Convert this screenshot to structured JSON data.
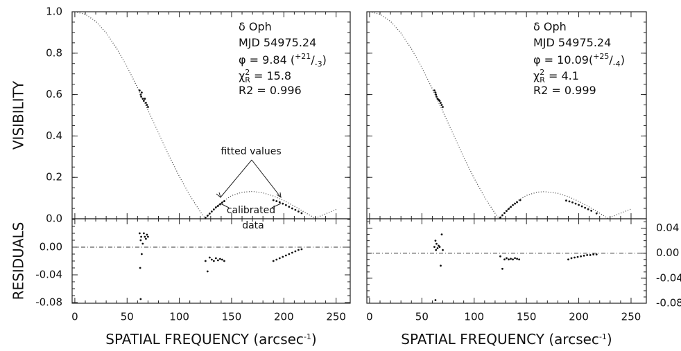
{
  "chart_data": [
    {
      "type": "line",
      "ylabel": "VISIBILITY",
      "xlim": [
        -2.6,
        263.5
      ],
      "ylim": [
        0,
        1
      ],
      "xticks": [
        0,
        50,
        100,
        150,
        200,
        250
      ],
      "yticks": [
        {
          "value": 0,
          "label": "0.0"
        },
        0.2,
        0.4,
        0.6,
        0.8,
        {
          "value": 1,
          "label": "1.0"
        }
      ],
      "ytick_side": "left",
      "xtick_labels": false,
      "annotations": {
        "star": "δ Oph",
        "mjd": "MJD 54975.24",
        "phi": {
          "text": "φ = 9.84 (",
          "sup": "+21",
          "sep": "/",
          "sub": "-3",
          "close": ")"
        },
        "chi": {
          "symbol": "χ",
          "sup": "2",
          "sub": "R",
          "text": " = 15.8"
        },
        "r2": "R2 = 0.996"
      },
      "callouts": [
        "fitted values",
        "calibrated",
        "data"
      ],
      "series": [
        {
          "style": "dotted",
          "color": "#444",
          "x": [
            0,
            10,
            20,
            30,
            40,
            50,
            60,
            70,
            80,
            90,
            100,
            110,
            120,
            125,
            130,
            140,
            150,
            160,
            170,
            180,
            190,
            200,
            210,
            220,
            230,
            240,
            250
          ],
          "values": [
            1,
            0.988,
            0.954,
            0.898,
            0.823,
            0.734,
            0.633,
            0.524,
            0.415,
            0.306,
            0.205,
            0.113,
            0.034,
            0,
            0.03,
            0.078,
            0.112,
            0.128,
            0.132,
            0.125,
            0.11,
            0.088,
            0.061,
            0.031,
            0.002,
            0.024,
            0.045
          ]
        },
        {
          "style": "points",
          "color": "#111",
          "x": [
            62,
            63,
            63.5,
            64,
            65,
            66,
            67,
            68,
            69,
            70,
            125,
            127,
            129,
            131,
            133,
            135,
            137,
            139,
            141,
            143,
            190,
            193,
            196,
            199,
            202,
            205,
            208,
            211,
            214,
            217
          ],
          "values": [
            0.62,
            0.6,
            0.59,
            0.61,
            0.58,
            0.57,
            0.58,
            0.56,
            0.55,
            0.54,
            0.005,
            0.015,
            0.025,
            0.035,
            0.045,
            0.055,
            0.062,
            0.07,
            0.078,
            0.085,
            0.09,
            0.085,
            0.08,
            0.073,
            0.066,
            0.058,
            0.05,
            0.043,
            0.035,
            0.027
          ]
        }
      ]
    },
    {
      "type": "line",
      "ylabel": "RESIDUALS",
      "xlim": [
        -2.6,
        263.5
      ],
      "ylim": [
        -0.081,
        0.041
      ],
      "xticks": [
        0,
        50,
        100,
        150,
        200,
        250
      ],
      "yticks": [
        {
          "value": 0,
          "label": "0.00"
        },
        {
          "value": -0.04,
          "label": "-0.04"
        },
        {
          "value": -0.08,
          "label": "-0.08"
        }
      ],
      "ytick_side": "left",
      "xtick_labels": true,
      "reference_line": 0,
      "xlabel": {
        "text": "SPATIAL FREQUENCY (arcsec",
        "sup": "-1",
        "close": ")"
      },
      "series": [
        {
          "style": "points",
          "color": "#111",
          "x": [
            62,
            63,
            63.5,
            64,
            65,
            66,
            67,
            68,
            69,
            70,
            62.5,
            63,
            125,
            127,
            129,
            131,
            133,
            135,
            137,
            139,
            141,
            143,
            190,
            193,
            196,
            199,
            202,
            205,
            208,
            211,
            214,
            217
          ],
          "values": [
            0.02,
            0.01,
            0.015,
            -0.01,
            0.005,
            0.02,
            0.015,
            0.012,
            0.018,
            0.015,
            -0.03,
            -0.075,
            -0.02,
            -0.035,
            -0.015,
            -0.018,
            -0.02,
            -0.016,
            -0.019,
            -0.017,
            -0.018,
            -0.02,
            -0.02,
            -0.018,
            -0.016,
            -0.014,
            -0.012,
            -0.01,
            -0.008,
            -0.006,
            -0.004,
            -0.003
          ]
        }
      ]
    },
    {
      "type": "line",
      "xlim": [
        -2.6,
        264.6
      ],
      "ylim": [
        0,
        1
      ],
      "xticks": [
        0,
        50,
        100,
        150,
        200,
        250
      ],
      "yticks": [
        0,
        0.2,
        0.4,
        0.6,
        0.8,
        1
      ],
      "ytick_side": "none",
      "xtick_labels": false,
      "annotations": {
        "star": "δ Oph",
        "mjd": "MJD 54975.24",
        "phi": {
          "text": "φ = 10.09(",
          "sup": "+25",
          "sep": "/",
          "sub": "-4",
          "close": ")"
        },
        "chi": {
          "symbol": "χ",
          "sup": "2",
          "sub": "R",
          "text": " = 4.1"
        },
        "r2": "R2 = 0.999"
      },
      "series": [
        {
          "style": "dotted",
          "color": "#444",
          "x": [
            0,
            10,
            20,
            30,
            40,
            50,
            60,
            70,
            80,
            90,
            100,
            110,
            120,
            124,
            130,
            140,
            150,
            160,
            167,
            180,
            190,
            200,
            210,
            220,
            228,
            240,
            250
          ],
          "values": [
            1,
            0.988,
            0.954,
            0.897,
            0.821,
            0.731,
            0.628,
            0.519,
            0.408,
            0.298,
            0.196,
            0.104,
            0.026,
            0,
            0.036,
            0.082,
            0.113,
            0.128,
            0.131,
            0.123,
            0.107,
            0.084,
            0.057,
            0.027,
            0.002,
            0.027,
            0.047
          ]
        },
        {
          "style": "points",
          "color": "#111",
          "x": [
            62,
            63,
            63.5,
            64,
            65,
            66,
            67,
            68,
            69,
            70,
            125,
            127,
            129,
            131,
            133,
            135,
            137,
            139,
            141,
            144,
            188,
            191,
            194,
            197,
            200,
            203,
            206,
            209,
            212,
            217
          ],
          "values": [
            0.62,
            0.61,
            0.6,
            0.59,
            0.58,
            0.575,
            0.57,
            0.56,
            0.55,
            0.54,
            0.006,
            0.017,
            0.028,
            0.038,
            0.048,
            0.057,
            0.066,
            0.073,
            0.08,
            0.09,
            0.088,
            0.084,
            0.079,
            0.073,
            0.067,
            0.06,
            0.053,
            0.046,
            0.039,
            0.026
          ]
        }
      ]
    },
    {
      "type": "line",
      "xlim": [
        -2.6,
        264.6
      ],
      "ylim": [
        -0.08,
        0.055
      ],
      "xticks": [
        0,
        50,
        100,
        150,
        200,
        250
      ],
      "yticks": [
        0.04,
        {
          "value": 0,
          "label": "0.00"
        },
        {
          "value": -0.04,
          "label": "-0.04"
        },
        {
          "value": -0.08,
          "label": "-0.08"
        }
      ],
      "ytick_side": "right",
      "xtick_labels": true,
      "reference_line": 0,
      "xlabel": {
        "text": "SPATIAL FREQUENCY (arcsec",
        "sup": "-1",
        "close": ")"
      },
      "series": [
        {
          "style": "points",
          "color": "#111",
          "x": [
            62,
            63,
            63.5,
            64,
            65,
            66,
            67,
            68,
            69,
            70,
            63,
            125,
            127,
            129,
            131,
            133,
            135,
            137,
            139,
            141,
            143,
            190,
            193,
            196,
            199,
            202,
            205,
            208,
            211,
            214,
            217
          ],
          "values": [
            0.01,
            0.02,
            0.005,
            0.015,
            0.008,
            0.012,
            0.01,
            -0.02,
            0.03,
            0.005,
            -0.075,
            -0.005,
            -0.025,
            -0.01,
            -0.008,
            -0.01,
            -0.009,
            -0.01,
            -0.008,
            -0.009,
            -0.01,
            -0.01,
            -0.008,
            -0.007,
            -0.006,
            -0.005,
            -0.004,
            -0.003,
            -0.003,
            -0.002,
            -0.002
          ]
        }
      ]
    }
  ]
}
